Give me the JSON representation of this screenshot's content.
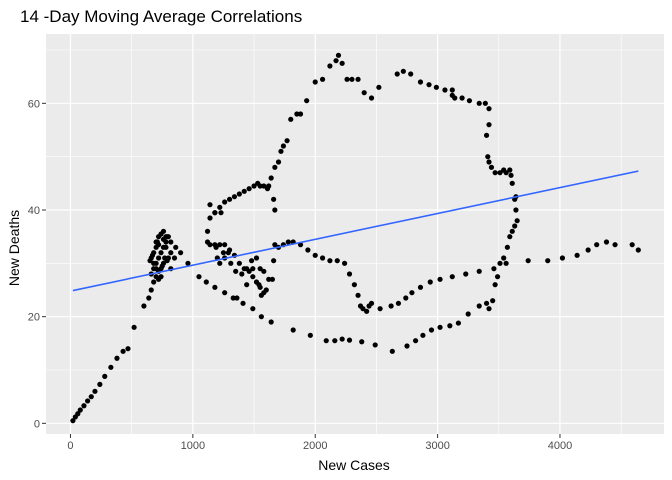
{
  "chart_data": {
    "type": "scatter",
    "title": "14 -Day Moving Average Correlations",
    "xlabel": "New  Cases",
    "ylabel": "New Deaths",
    "xlim": [
      -200,
      4850
    ],
    "ylim": [
      -2,
      73
    ],
    "x_ticks": [
      0,
      1000,
      2000,
      3000,
      4000
    ],
    "y_ticks": [
      0,
      20,
      40,
      60
    ],
    "x_tick_labels": [
      "0",
      "1000",
      "2000",
      "3000",
      "4000"
    ],
    "y_tick_labels": [
      "0",
      "20",
      "40",
      "60"
    ],
    "grid": true,
    "colors": {
      "panel": "#ebebeb",
      "grid_major": "#ffffff",
      "points": "#000000",
      "trend_line": "#3366ff"
    },
    "trend_line": {
      "x": [
        20,
        4640
      ],
      "y": [
        24.9,
        47.3
      ]
    },
    "points": [
      [
        20,
        0.5
      ],
      [
        40,
        1.2
      ],
      [
        60,
        1.8
      ],
      [
        80,
        2.5
      ],
      [
        110,
        3.3
      ],
      [
        140,
        4.2
      ],
      [
        170,
        5
      ],
      [
        200,
        6
      ],
      [
        240,
        7.3
      ],
      [
        280,
        8.8
      ],
      [
        330,
        10.5
      ],
      [
        380,
        12.2
      ],
      [
        430,
        13.5
      ],
      [
        470,
        14
      ],
      [
        520,
        18
      ],
      [
        600,
        22
      ],
      [
        640,
        23.5
      ],
      [
        660,
        25
      ],
      [
        680,
        26.5
      ],
      [
        700,
        27.5
      ],
      [
        720,
        28.5
      ],
      [
        740,
        29
      ],
      [
        660,
        28
      ],
      [
        680,
        29
      ],
      [
        700,
        30
      ],
      [
        720,
        31
      ],
      [
        740,
        32
      ],
      [
        760,
        33
      ],
      [
        780,
        34
      ],
      [
        800,
        35
      ],
      [
        820,
        34
      ],
      [
        860,
        33
      ],
      [
        900,
        32
      ],
      [
        960,
        30
      ],
      [
        650,
        30.5
      ],
      [
        660,
        31
      ],
      [
        670,
        31.5
      ],
      [
        680,
        32
      ],
      [
        700,
        33
      ],
      [
        710,
        34
      ],
      [
        720,
        35
      ],
      [
        740,
        35.5
      ],
      [
        760,
        36
      ],
      [
        780,
        35
      ],
      [
        780,
        33
      ],
      [
        800,
        31
      ],
      [
        820,
        29
      ],
      [
        760,
        30
      ],
      [
        740,
        27.5
      ],
      [
        700,
        29
      ],
      [
        680,
        30
      ],
      [
        720,
        27
      ],
      [
        750,
        29.5
      ],
      [
        770,
        31
      ],
      [
        790,
        30.5
      ],
      [
        1050,
        27.5
      ],
      [
        1110,
        26.5
      ],
      [
        1180,
        25.5
      ],
      [
        1260,
        24.5
      ],
      [
        1330,
        23.5
      ],
      [
        1410,
        22.5
      ],
      [
        1490,
        21.5
      ],
      [
        1560,
        20
      ],
      [
        1640,
        19
      ],
      [
        1820,
        17.5
      ],
      [
        1960,
        16.5
      ],
      [
        2090,
        15.5
      ],
      [
        2160,
        15.5
      ],
      [
        2220,
        15.8
      ],
      [
        2280,
        15.6
      ],
      [
        2380,
        15.3
      ],
      [
        2490,
        14.7
      ],
      [
        2630,
        13.5
      ],
      [
        2750,
        14.5
      ],
      [
        2820,
        15.5
      ],
      [
        2880,
        16.5
      ],
      [
        2950,
        17.5
      ],
      [
        3020,
        18
      ],
      [
        3100,
        18.3
      ],
      [
        3170,
        18.8
      ],
      [
        3250,
        20.5
      ],
      [
        3340,
        22
      ],
      [
        3400,
        22.5
      ],
      [
        3420,
        21.5
      ],
      [
        3450,
        23
      ],
      [
        3470,
        26
      ],
      [
        3490,
        27.5
      ],
      [
        3510,
        30
      ],
      [
        3540,
        31
      ],
      [
        3570,
        33
      ],
      [
        3590,
        35
      ],
      [
        3610,
        36
      ],
      [
        3630,
        37
      ],
      [
        3650,
        38
      ],
      [
        3640,
        40
      ],
      [
        3630,
        42
      ],
      [
        3640,
        42.5
      ],
      [
        3610,
        45
      ],
      [
        3600,
        46.5
      ],
      [
        3590,
        47.5
      ],
      [
        3560,
        47
      ],
      [
        3540,
        47.5
      ],
      [
        3510,
        47
      ],
      [
        3470,
        47
      ],
      [
        3440,
        48
      ],
      [
        3420,
        49
      ],
      [
        3410,
        50
      ],
      [
        3400,
        54
      ],
      [
        3420,
        56
      ],
      [
        3420,
        59
      ],
      [
        3390,
        60
      ],
      [
        3340,
        60
      ],
      [
        3260,
        60.5
      ],
      [
        3200,
        61
      ],
      [
        3140,
        61
      ],
      [
        3120,
        61.5
      ],
      [
        3120,
        62.5
      ],
      [
        3060,
        62.5
      ],
      [
        2990,
        63
      ],
      [
        2930,
        63.5
      ],
      [
        2860,
        64
      ],
      [
        2780,
        65.5
      ],
      [
        2720,
        66
      ],
      [
        2670,
        65.5
      ],
      [
        2520,
        63
      ],
      [
        2460,
        61
      ],
      [
        2400,
        62
      ],
      [
        2350,
        64.5
      ],
      [
        2300,
        64.5
      ],
      [
        2260,
        64.5
      ],
      [
        2220,
        67.5
      ],
      [
        2190,
        69
      ],
      [
        2170,
        68
      ],
      [
        2120,
        67
      ],
      [
        2060,
        64.5
      ],
      [
        2000,
        64
      ],
      [
        1930,
        60.5
      ],
      [
        1880,
        58
      ],
      [
        1850,
        58
      ],
      [
        1800,
        57
      ],
      [
        1770,
        53
      ],
      [
        1740,
        52
      ],
      [
        1720,
        51
      ],
      [
        1700,
        49
      ],
      [
        1670,
        48
      ],
      [
        1640,
        46
      ],
      [
        1620,
        44.5
      ],
      [
        1610,
        44
      ],
      [
        1580,
        44.5
      ],
      [
        1550,
        44.5
      ],
      [
        1530,
        45
      ],
      [
        1500,
        44.5
      ],
      [
        1460,
        44
      ],
      [
        1420,
        43.5
      ],
      [
        1380,
        43
      ],
      [
        1340,
        42.5
      ],
      [
        1300,
        42
      ],
      [
        1260,
        41.5
      ],
      [
        1220,
        40.5
      ],
      [
        1180,
        39.5
      ],
      [
        1140,
        38.5
      ],
      [
        1120,
        36
      ],
      [
        1120,
        34
      ],
      [
        1140,
        33.5
      ],
      [
        1180,
        33.5
      ],
      [
        1220,
        33.5
      ],
      [
        1260,
        33.5
      ],
      [
        1300,
        32.5
      ],
      [
        1340,
        31.5
      ],
      [
        1380,
        30
      ],
      [
        1420,
        29
      ],
      [
        1460,
        28.5
      ],
      [
        1490,
        27.5
      ],
      [
        1520,
        26.5
      ],
      [
        1550,
        25.5
      ],
      [
        1580,
        24.5
      ],
      [
        1600,
        25
      ],
      [
        1620,
        27
      ],
      [
        1660,
        30.5
      ],
      [
        1700,
        33
      ],
      [
        1740,
        33.5
      ],
      [
        1780,
        34
      ],
      [
        1820,
        34
      ],
      [
        1880,
        33.5
      ],
      [
        1940,
        32.5
      ],
      [
        2000,
        31.5
      ],
      [
        2060,
        31
      ],
      [
        2120,
        30.5
      ],
      [
        2180,
        30.5
      ],
      [
        2240,
        30
      ],
      [
        2280,
        28
      ],
      [
        2320,
        26
      ],
      [
        2350,
        24
      ],
      [
        2370,
        22
      ],
      [
        2390,
        21.5
      ],
      [
        2420,
        21
      ],
      [
        2440,
        22
      ],
      [
        2460,
        22.5
      ],
      [
        2530,
        21.5
      ],
      [
        2620,
        22
      ],
      [
        2680,
        22.5
      ],
      [
        2740,
        23.5
      ],
      [
        2790,
        24.5
      ],
      [
        2860,
        25.5
      ],
      [
        2940,
        26.5
      ],
      [
        3020,
        27
      ],
      [
        3120,
        27.5
      ],
      [
        3230,
        28
      ],
      [
        3340,
        28.5
      ],
      [
        3460,
        29
      ],
      [
        3560,
        30
      ],
      [
        3740,
        30.5
      ],
      [
        3900,
        30.5
      ],
      [
        4020,
        31
      ],
      [
        4140,
        31.5
      ],
      [
        4230,
        32.5
      ],
      [
        4300,
        33.5
      ],
      [
        4380,
        34
      ],
      [
        4450,
        33.5
      ],
      [
        4590,
        33.5
      ],
      [
        4640,
        32.5
      ],
      [
        1140,
        41
      ],
      [
        1180,
        39.5
      ],
      [
        1230,
        39.5
      ],
      [
        1360,
        23.5
      ],
      [
        1440,
        26
      ],
      [
        1490,
        29
      ],
      [
        1520,
        31
      ],
      [
        1550,
        29
      ],
      [
        1580,
        28.5
      ],
      [
        1540,
        26
      ],
      [
        1560,
        24
      ],
      [
        1650,
        27
      ],
      [
        1670,
        33.5
      ],
      [
        1670,
        40
      ],
      [
        1660,
        42
      ],
      [
        1190,
        33
      ],
      [
        1200,
        31
      ],
      [
        1220,
        30
      ],
      [
        1250,
        32
      ],
      [
        1260,
        31
      ],
      [
        1290,
        32
      ],
      [
        1310,
        30
      ],
      [
        1350,
        28.5
      ],
      [
        1400,
        28
      ],
      [
        1440,
        29
      ],
      [
        1480,
        30.5
      ],
      [
        820,
        32
      ],
      [
        850,
        31
      ],
      [
        720,
        33.5
      ],
      [
        700,
        34
      ],
      [
        760,
        34.5
      ],
      [
        790,
        35
      ]
    ]
  }
}
